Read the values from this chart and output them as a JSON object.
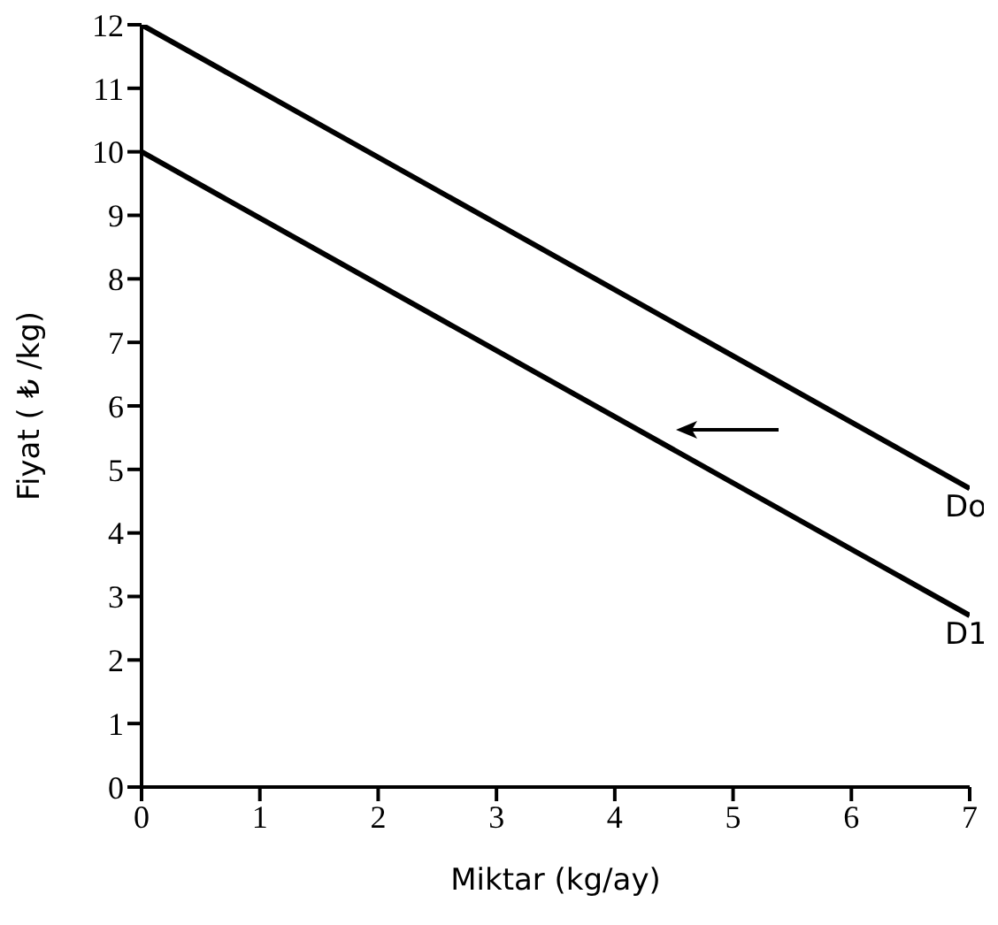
{
  "chart_data": {
    "type": "line",
    "xlabel": "Miktar (kg/ay)",
    "ylabel": "Fiyat ( ₺ /kg)",
    "x": [
      0,
      7
    ],
    "series": [
      {
        "name": "Do",
        "color": "#000000",
        "values": [
          12,
          4.7
        ]
      },
      {
        "name": "D1",
        "color": "#000000",
        "values": [
          10,
          2.7
        ]
      }
    ],
    "xlim": [
      0,
      7
    ],
    "xticks": [
      0,
      1,
      2,
      3,
      4,
      5,
      6,
      7
    ],
    "ylim": [
      0,
      12
    ],
    "yticks": [
      0,
      1,
      2,
      3,
      4,
      5,
      6,
      7,
      8,
      9,
      10,
      11,
      12
    ],
    "grid": false,
    "legend": false,
    "marker": "none",
    "line_style": "solid"
  }
}
